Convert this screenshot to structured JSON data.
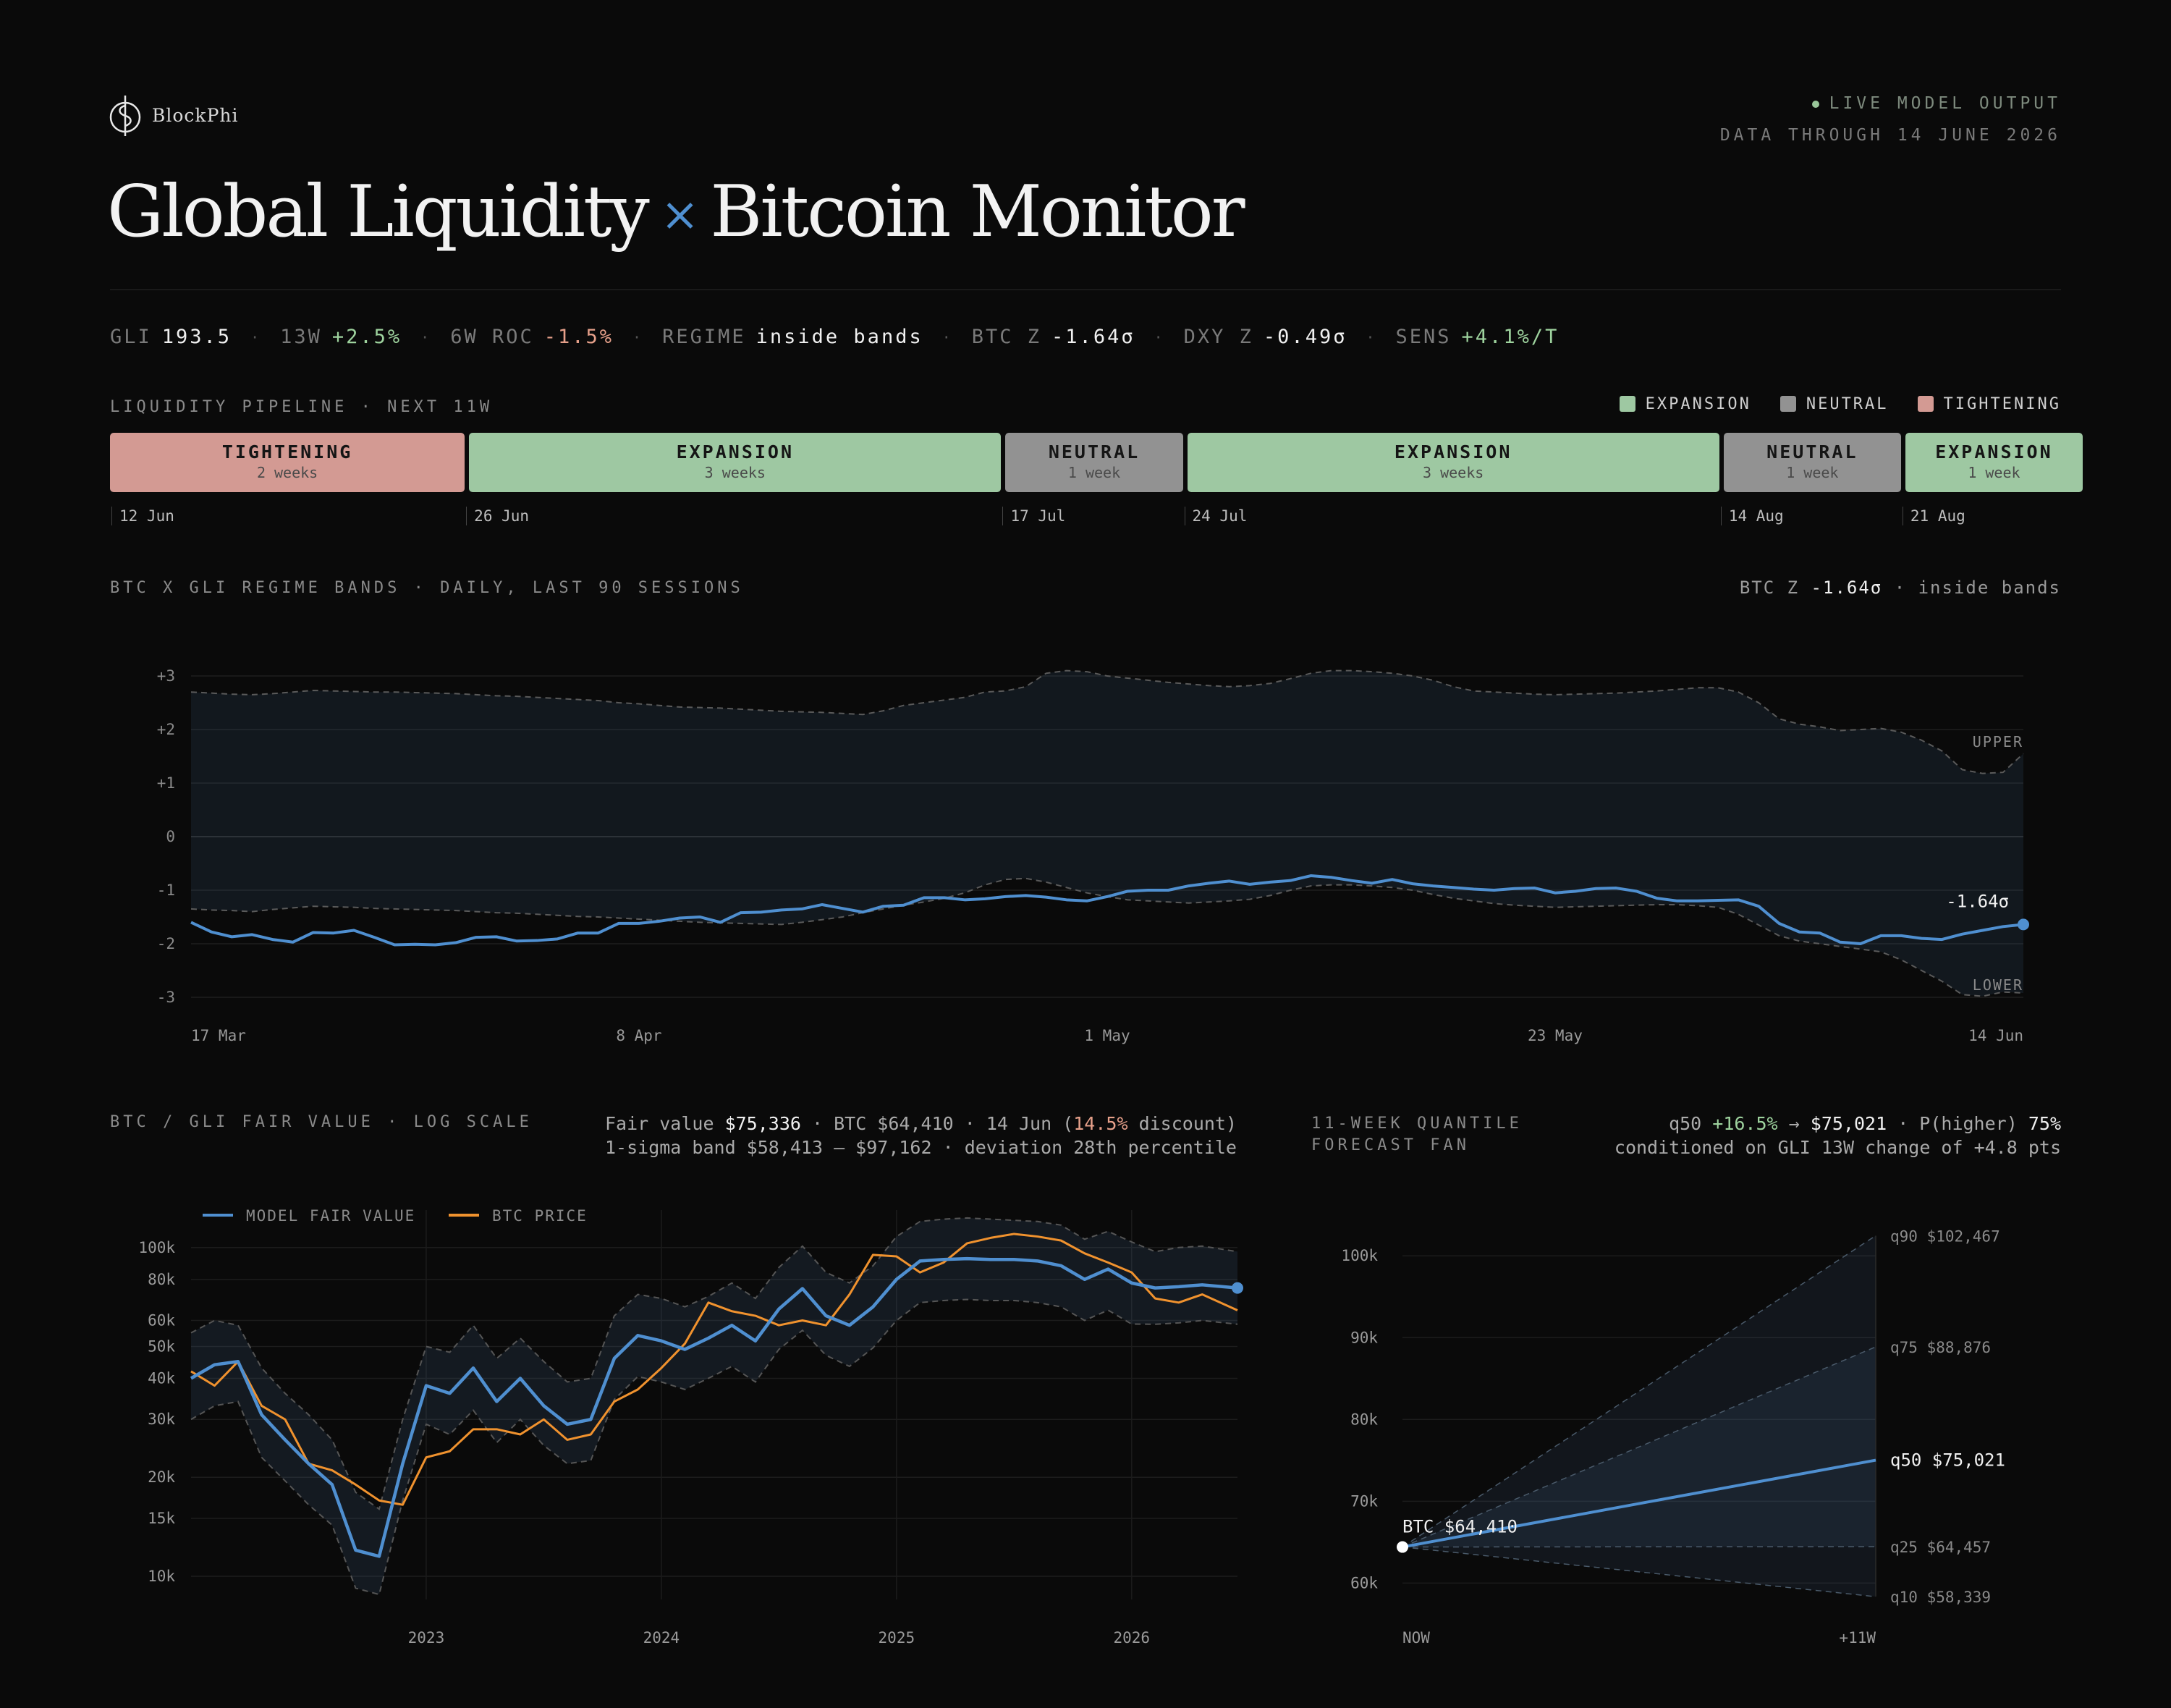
{
  "header": {
    "brand": "BlockPhi",
    "title_left": "Global Liquidity",
    "title_sep": "×",
    "title_right": "Bitcoin Monitor",
    "live": "LIVE MODEL OUTPUT",
    "data_through": "DATA THROUGH 14 JUNE 2026"
  },
  "stats": [
    {
      "key": "GLI",
      "value": "193.5",
      "tone": "plain"
    },
    {
      "key": "13W",
      "value": "+2.5%",
      "tone": "pos"
    },
    {
      "key": "6W ROC",
      "value": "-1.5%",
      "tone": "neg"
    },
    {
      "key": "REGIME",
      "value": "inside bands",
      "tone": "plain"
    },
    {
      "key": "BTC Z",
      "value": "-1.64σ",
      "tone": "plain"
    },
    {
      "key": "DXY Z",
      "value": "-0.49σ",
      "tone": "plain"
    },
    {
      "key": "SENS",
      "value": "+4.1%/T",
      "tone": "pos"
    }
  ],
  "pipeline": {
    "title": "LIQUIDITY PIPELINE · NEXT 11W",
    "legend": [
      {
        "label": "EXPANSION",
        "color": "#9ec8a2"
      },
      {
        "label": "NEUTRAL",
        "color": "#929292"
      },
      {
        "label": "TIGHTENING",
        "color": "#d39a93"
      }
    ],
    "blocks": [
      {
        "name": "TIGHTENING",
        "duration": "2 weeks",
        "weeks": 2,
        "color": "#d39a93"
      },
      {
        "name": "EXPANSION",
        "duration": "3 weeks",
        "weeks": 3,
        "color": "#9ec8a2"
      },
      {
        "name": "NEUTRAL",
        "duration": "1 week",
        "weeks": 1,
        "color": "#929292"
      },
      {
        "name": "EXPANSION",
        "duration": "3 weeks",
        "weeks": 3,
        "color": "#9ec8a2"
      },
      {
        "name": "NEUTRAL",
        "duration": "1 week",
        "weeks": 1,
        "color": "#929292"
      },
      {
        "name": "EXPANSION",
        "duration": "1 week",
        "weeks": 1,
        "color": "#9ec8a2"
      }
    ],
    "dates": [
      "12 Jun",
      "26 Jun",
      "17 Jul",
      "24 Jul",
      "14 Aug",
      "21 Aug"
    ]
  },
  "regime": {
    "title": "BTC X GLI REGIME BANDS · DAILY, LAST 90 SESSIONS",
    "right_key": "BTC Z",
    "right_value": "-1.64σ",
    "right_suffix": "· inside bands"
  },
  "fair_value": {
    "title": "BTC / GLI FAIR VALUE · LOG SCALE",
    "line1_pre": "Fair value",
    "line1_fv": "$75,336",
    "line1_mid": "· BTC $64,410 · 14 Jun (",
    "line1_disc": "14.5%",
    "line1_post": "discount)",
    "line2": "1-sigma band $58,413 – $97,162 · deviation 28th percentile"
  },
  "forecast": {
    "title1": "11-WEEK QUANTILE",
    "title2": "FORECAST FAN",
    "line1_pre": "q50",
    "line1_pct": "+16.5%",
    "line1_arrow": "→",
    "line1_val": "$75,021",
    "line1_mid": "· P(higher)",
    "line1_p": "75%",
    "line2": "conditioned on GLI 13W change of +4.8 pts"
  },
  "chart_data": [
    {
      "type": "line",
      "id": "regime",
      "title": "BTC X GLI REGIME BANDS · DAILY, LAST 90 SESSIONS",
      "ylim": [
        -3,
        3
      ],
      "yticks": [
        "+3",
        "+2",
        "+1",
        "0",
        "-1",
        "-2",
        "-3"
      ],
      "xticks": [
        "17 Mar",
        "8 Apr",
        "1 May",
        "23 May",
        "14 Jun"
      ],
      "band_labels": {
        "upper": "UPPER",
        "lower": "LOWER"
      },
      "last_label": "-1.64σ",
      "series": [
        {
          "name": "BTC Z",
          "values": [
            -1.6,
            -1.78,
            -1.87,
            -1.83,
            -1.92,
            -1.97,
            -1.79,
            -1.8,
            -1.75,
            -1.88,
            -2.02,
            -2.01,
            -2.02,
            -1.98,
            -1.88,
            -1.87,
            -1.95,
            -1.94,
            -1.91,
            -1.8,
            -1.8,
            -1.62,
            -1.62,
            -1.58,
            -1.52,
            -1.5,
            -1.6,
            -1.42,
            -1.41,
            -1.37,
            -1.35,
            -1.27,
            -1.34,
            -1.41,
            -1.3,
            -1.28,
            -1.14,
            -1.14,
            -1.18,
            -1.16,
            -1.12,
            -1.1,
            -1.13,
            -1.18,
            -1.2,
            -1.12,
            -1.02,
            -1.0,
            -1.0,
            -0.92,
            -0.87,
            -0.83,
            -0.89,
            -0.85,
            -0.82,
            -0.73,
            -0.76,
            -0.82,
            -0.87,
            -0.8,
            -0.88,
            -0.92,
            -0.95,
            -0.98,
            -1.0,
            -0.97,
            -0.96,
            -1.05,
            -1.02,
            -0.97,
            -0.96,
            -1.02,
            -1.15,
            -1.2,
            -1.2,
            -1.19,
            -1.18,
            -1.3,
            -1.62,
            -1.78,
            -1.8,
            -1.97,
            -2.0,
            -1.85,
            -1.85,
            -1.9,
            -1.92,
            -1.82,
            -1.75,
            -1.68,
            -1.64
          ]
        },
        {
          "name": "Upper",
          "values": [
            2.7,
            2.68,
            2.66,
            2.65,
            2.67,
            2.7,
            2.73,
            2.72,
            2.71,
            2.7,
            2.7,
            2.69,
            2.68,
            2.67,
            2.65,
            2.63,
            2.62,
            2.6,
            2.58,
            2.56,
            2.54,
            2.5,
            2.48,
            2.45,
            2.42,
            2.41,
            2.4,
            2.38,
            2.36,
            2.34,
            2.33,
            2.32,
            2.3,
            2.28,
            2.35,
            2.45,
            2.5,
            2.55,
            2.6,
            2.7,
            2.72,
            2.8,
            3.05,
            3.1,
            3.08,
            3.0,
            2.96,
            2.92,
            2.88,
            2.85,
            2.82,
            2.8,
            2.82,
            2.86,
            2.95,
            3.05,
            3.1,
            3.1,
            3.08,
            3.05,
            3.0,
            2.92,
            2.8,
            2.72,
            2.7,
            2.68,
            2.66,
            2.65,
            2.66,
            2.67,
            2.68,
            2.7,
            2.72,
            2.75,
            2.78,
            2.78,
            2.7,
            2.5,
            2.2,
            2.1,
            2.05,
            1.98,
            2.0,
            2.02,
            1.95,
            1.8,
            1.6,
            1.25,
            1.18,
            1.2,
            1.55
          ]
        },
        {
          "name": "Lower",
          "values": [
            -1.35,
            -1.37,
            -1.38,
            -1.4,
            -1.36,
            -1.33,
            -1.3,
            -1.31,
            -1.32,
            -1.34,
            -1.35,
            -1.36,
            -1.37,
            -1.38,
            -1.4,
            -1.42,
            -1.43,
            -1.45,
            -1.47,
            -1.49,
            -1.5,
            -1.52,
            -1.54,
            -1.56,
            -1.58,
            -1.6,
            -1.61,
            -1.62,
            -1.63,
            -1.64,
            -1.6,
            -1.55,
            -1.5,
            -1.42,
            -1.35,
            -1.28,
            -1.22,
            -1.15,
            -1.05,
            -0.9,
            -0.8,
            -0.78,
            -0.85,
            -0.95,
            -1.05,
            -1.12,
            -1.18,
            -1.2,
            -1.22,
            -1.24,
            -1.22,
            -1.2,
            -1.17,
            -1.1,
            -1.0,
            -0.92,
            -0.9,
            -0.9,
            -0.92,
            -0.95,
            -1.0,
            -1.08,
            -1.15,
            -1.2,
            -1.25,
            -1.28,
            -1.3,
            -1.32,
            -1.31,
            -1.3,
            -1.29,
            -1.28,
            -1.27,
            -1.27,
            -1.29,
            -1.32,
            -1.45,
            -1.65,
            -1.85,
            -1.95,
            -2.0,
            -2.05,
            -2.1,
            -2.15,
            -2.3,
            -2.5,
            -2.7,
            -2.95,
            -2.98,
            -2.9,
            -2.92
          ]
        }
      ]
    },
    {
      "type": "line",
      "id": "fair_value",
      "title": "BTC / GLI FAIR VALUE · LOG SCALE",
      "log_scale": true,
      "ylim": [
        8500,
        130000
      ],
      "yticks": [
        100000,
        80000,
        60000,
        50000,
        40000,
        30000,
        20000,
        15000,
        10000
      ],
      "yticklabels": [
        "100k",
        "80k",
        "60k",
        "50k",
        "40k",
        "30k",
        "20k",
        "15k",
        "10k"
      ],
      "x_range": [
        2022.0,
        2026.45
      ],
      "xticks": [
        2023,
        2024,
        2025,
        2026
      ],
      "legend": [
        "MODEL FAIR VALUE",
        "BTC PRICE"
      ],
      "grid": true,
      "x": [
        2022.0,
        2022.1,
        2022.2,
        2022.3,
        2022.4,
        2022.5,
        2022.6,
        2022.7,
        2022.8,
        2022.9,
        2023.0,
        2023.1,
        2023.2,
        2023.3,
        2023.4,
        2023.5,
        2023.6,
        2023.7,
        2023.8,
        2023.9,
        2024.0,
        2024.1,
        2024.2,
        2024.3,
        2024.4,
        2024.5,
        2024.6,
        2024.7,
        2024.8,
        2024.9,
        2025.0,
        2025.1,
        2025.2,
        2025.3,
        2025.4,
        2025.5,
        2025.6,
        2025.7,
        2025.8,
        2025.9,
        2026.0,
        2026.1,
        2026.2,
        2026.3,
        2026.45
      ],
      "series": [
        {
          "name": "MODEL FAIR VALUE",
          "values": [
            40000,
            44000,
            45000,
            31000,
            26000,
            22000,
            19000,
            12000,
            11500,
            22000,
            38000,
            36000,
            43000,
            34000,
            40000,
            33000,
            29000,
            30000,
            46000,
            54000,
            52000,
            49000,
            53000,
            58000,
            52000,
            65000,
            75000,
            62000,
            58000,
            66000,
            80000,
            91000,
            92000,
            92500,
            92000,
            92000,
            91000,
            88000,
            80000,
            86000,
            78000,
            75336,
            76000,
            77000,
            75336
          ]
        },
        {
          "name": "BTC PRICE",
          "values": [
            42000,
            38000,
            45000,
            33000,
            30000,
            22000,
            21000,
            19000,
            17000,
            16500,
            23000,
            24000,
            28000,
            28000,
            27000,
            30000,
            26000,
            27000,
            34000,
            37000,
            43000,
            51000,
            68000,
            64000,
            62000,
            58000,
            60000,
            58000,
            72000,
            95000,
            94000,
            84000,
            90000,
            103000,
            107000,
            110000,
            108000,
            105000,
            96000,
            90000,
            84000,
            70000,
            68000,
            72000,
            64410
          ]
        },
        {
          "name": "Band upper",
          "values": [
            55000,
            60000,
            58000,
            43000,
            36000,
            31000,
            26000,
            18000,
            16000,
            30000,
            50000,
            48000,
            58000,
            46000,
            53000,
            45000,
            39000,
            40000,
            62000,
            72000,
            70000,
            66000,
            71000,
            78000,
            70000,
            87000,
            101000,
            84000,
            78000,
            88000,
            108000,
            120000,
            122000,
            123000,
            122000,
            121000,
            120000,
            117000,
            106000,
            112000,
            104000,
            97162,
            100000,
            101000,
            97162
          ]
        },
        {
          "name": "Band lower",
          "values": [
            30000,
            33000,
            34000,
            23000,
            19500,
            16500,
            14300,
            9200,
            8800,
            17000,
            29000,
            27000,
            32000,
            25500,
            30000,
            25000,
            22000,
            22500,
            34500,
            40500,
            39000,
            37000,
            40000,
            43500,
            39000,
            49000,
            56000,
            47000,
            43500,
            49500,
            60000,
            68000,
            69000,
            69500,
            69000,
            69000,
            68000,
            66000,
            60000,
            64500,
            58500,
            58413,
            59000,
            60000,
            58413
          ]
        }
      ]
    },
    {
      "type": "area",
      "id": "forecast_fan",
      "title": "11-WEEK QUANTILE FORECAST FAN",
      "ylim": [
        58000,
        104000
      ],
      "yticks": [
        100000,
        90000,
        80000,
        70000,
        60000
      ],
      "yticklabels": [
        "100k",
        "90k",
        "80k",
        "70k",
        "60k"
      ],
      "xticks": [
        "NOW",
        "+11W"
      ],
      "start_label": "BTC $64,410",
      "start_value": 64410,
      "quantiles": [
        {
          "name": "q90",
          "end": 102467,
          "label": "$102,467"
        },
        {
          "name": "q75",
          "end": 88876,
          "label": "$88,876"
        },
        {
          "name": "q50",
          "end": 75021,
          "label": "$75,021"
        },
        {
          "name": "q25",
          "end": 64457,
          "label": "$64,457"
        },
        {
          "name": "q10",
          "end": 58339,
          "label": "$58,339"
        }
      ]
    }
  ],
  "colors": {
    "accent": "#4f8fd0",
    "btc": "#f0922e",
    "expansion": "#9ec8a2",
    "neutral": "#929292",
    "tightening": "#d39a93"
  }
}
